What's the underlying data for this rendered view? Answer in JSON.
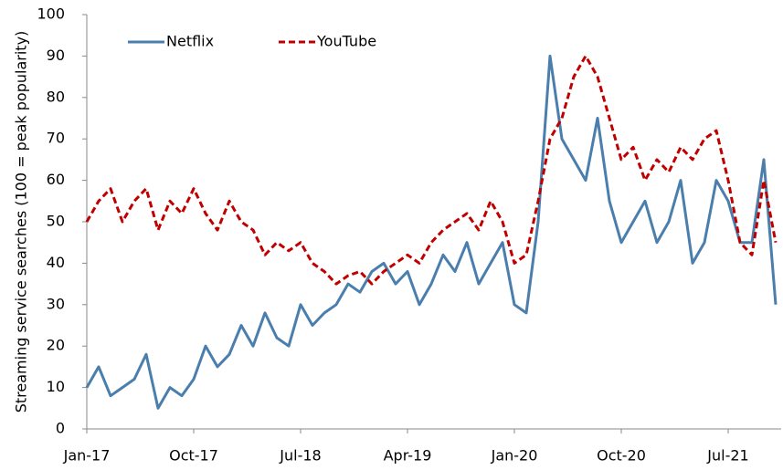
{
  "chart_data": {
    "type": "line",
    "y_label": "Streaming service searches (100 = peak popularity)",
    "categories": [
      "Jan-17",
      null,
      null,
      null,
      null,
      null,
      null,
      null,
      null,
      "Oct-17",
      null,
      null,
      null,
      null,
      null,
      null,
      null,
      null,
      "Jul-18",
      null,
      null,
      null,
      null,
      null,
      null,
      null,
      null,
      "Apr-19",
      null,
      null,
      null,
      null,
      null,
      null,
      null,
      null,
      "Jan-20",
      null,
      null,
      null,
      null,
      null,
      null,
      null,
      null,
      "Oct-20",
      null,
      null,
      null,
      null,
      null,
      null,
      null,
      null,
      "Jul-21",
      null,
      null,
      null,
      null
    ],
    "series": [
      {
        "name": "Netflix",
        "color": "#4a7ead",
        "line_style": "solid",
        "values": [
          10,
          15,
          8,
          10,
          12,
          18,
          5,
          10,
          8,
          12,
          20,
          15,
          18,
          25,
          20,
          28,
          22,
          20,
          30,
          25,
          28,
          30,
          35,
          33,
          38,
          40,
          35,
          38,
          30,
          35,
          42,
          38,
          45,
          35,
          40,
          45,
          30,
          28,
          50,
          90,
          70,
          65,
          60,
          75,
          55,
          45,
          50,
          55,
          45,
          50,
          60,
          40,
          45,
          60,
          55,
          45,
          45,
          65,
          30
        ]
      },
      {
        "name": "YouTube",
        "color": "#c00000",
        "line_style": "dashed",
        "values": [
          50,
          55,
          58,
          50,
          55,
          58,
          48,
          55,
          52,
          58,
          52,
          48,
          55,
          50,
          48,
          42,
          45,
          43,
          45,
          40,
          38,
          35,
          37,
          38,
          35,
          38,
          40,
          42,
          40,
          45,
          48,
          50,
          52,
          48,
          55,
          50,
          40,
          42,
          55,
          70,
          75,
          85,
          90,
          85,
          75,
          65,
          68,
          60,
          65,
          62,
          68,
          65,
          70,
          72,
          60,
          45,
          42,
          60,
          45
        ]
      }
    ],
    "ylim": [
      0,
      100
    ],
    "yticks": [
      0,
      10,
      20,
      30,
      40,
      50,
      60,
      70,
      80,
      90,
      100
    ],
    "grid": false,
    "legend": "upper left"
  }
}
